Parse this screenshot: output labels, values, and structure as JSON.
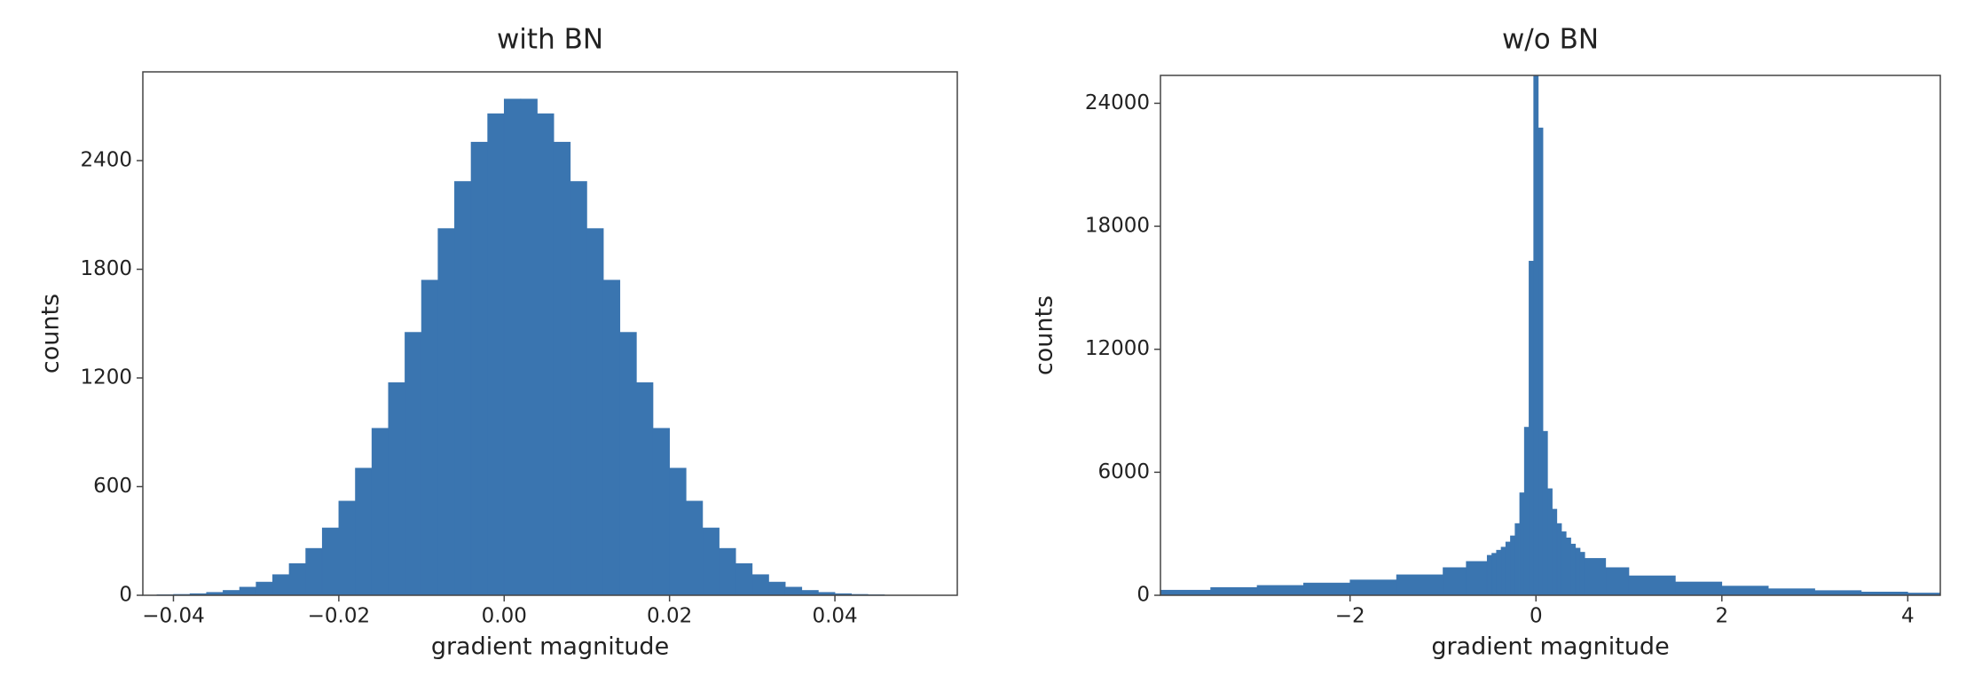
{
  "chart_data": [
    {
      "type": "histogram",
      "title": "with BN",
      "xlabel": "gradient magnitude",
      "ylabel": "counts",
      "color": "#3a75b0",
      "bins": [
        -0.044,
        -0.042,
        -0.04,
        -0.038,
        -0.036,
        -0.034,
        -0.032,
        -0.03,
        -0.028,
        -0.026,
        -0.024,
        -0.022,
        -0.02,
        -0.018,
        -0.016,
        -0.014,
        -0.012,
        -0.01,
        -0.008,
        -0.006,
        -0.004,
        -0.002,
        0,
        0.002,
        0.004,
        0.006,
        0.008,
        0.01,
        0.012,
        0.014,
        0.016,
        0.018,
        0.02,
        0.022,
        0.024,
        0.026,
        0.028,
        0.03,
        0.032,
        0.034,
        0.036,
        0.038,
        0.04,
        0.042,
        0.044,
        0.046,
        0.048,
        0.05,
        0.052,
        0.054
      ],
      "values": [
        1,
        3,
        5,
        9,
        16,
        27,
        45,
        73,
        114,
        175,
        259,
        372,
        520,
        702,
        922,
        1174,
        1452,
        1740,
        2025,
        2285,
        2502,
        2659,
        2740,
        2740,
        2659,
        2502,
        2285,
        2025,
        1740,
        1452,
        1174,
        922,
        702,
        520,
        372,
        259,
        175,
        114,
        73,
        45,
        27,
        16,
        9,
        5,
        3,
        1,
        1,
        0,
        0
      ],
      "xlim": [
        -0.0437,
        0.0548
      ],
      "ylim": [
        0,
        2890
      ],
      "xticks": [
        {
          "value": -0.04,
          "label": "−0.04"
        },
        {
          "value": -0.02,
          "label": "−0.02"
        },
        {
          "value": 0,
          "label": "0.00"
        },
        0.02,
        0.04
      ],
      "yticks": [
        0,
        600,
        1200,
        1800,
        2400
      ]
    },
    {
      "type": "histogram",
      "title": "w/o BN",
      "xlabel": "gradient magnitude",
      "ylabel": "counts",
      "color": "#3a75b0",
      "bins": [
        -4.05,
        -3.5,
        -3,
        -2.5,
        -2,
        -1.5,
        -1,
        -0.75,
        -0.525,
        -0.475,
        -0.425,
        -0.375,
        -0.325,
        -0.275,
        -0.225,
        -0.175,
        -0.125,
        -0.075,
        -0.025,
        0.025,
        0.075,
        0.125,
        0.175,
        0.225,
        0.275,
        0.325,
        0.375,
        0.425,
        0.475,
        0.525,
        0.75,
        1,
        1.5,
        2,
        2.5,
        3,
        3.5,
        4,
        4.4
      ],
      "values": [
        250,
        380,
        480,
        600,
        750,
        1000,
        1350,
        1650,
        1950,
        2050,
        2200,
        2350,
        2600,
        2900,
        3500,
        5000,
        8200,
        16300,
        26000,
        22800,
        8000,
        5200,
        4200,
        3500,
        3100,
        2800,
        2500,
        2300,
        2100,
        1800,
        1350,
        950,
        650,
        450,
        320,
        230,
        160,
        110
      ],
      "xlim": [
        -4.04,
        4.35
      ],
      "ylim": [
        0,
        25360
      ],
      "xticks": [
        {
          "value": -2,
          "label": "−2"
        },
        0,
        2,
        4
      ],
      "yticks": [
        0,
        6000,
        12000,
        18000,
        24000
      ]
    }
  ]
}
